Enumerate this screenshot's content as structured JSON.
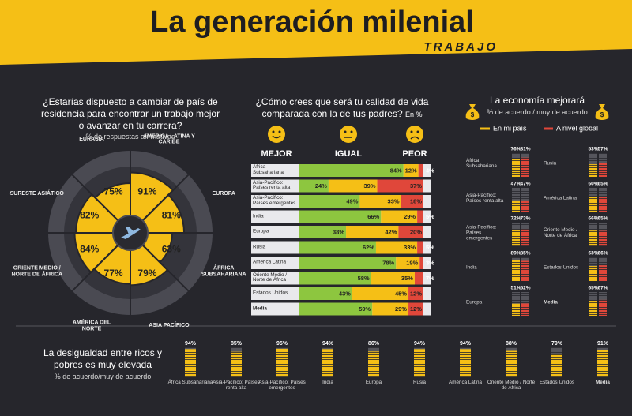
{
  "header": {
    "title": "La generación milenial",
    "subtitle": "TRABAJO"
  },
  "chart_data": [
    {
      "type": "radial",
      "title": "¿Estarías dispuesto a cambiar de país de residencia para encontrar un trabajo mejor o avanzar en tu carrera?",
      "subtitle": "% de respuestas afirmativas",
      "categories": [
        "EURASIA",
        "AMÉRICA LATINA Y CARIBE",
        "EUROPA",
        "ÁFRICA SUBSAHARIANA",
        "ASIA PACÍFICO",
        "AMÉRICA DEL NORTE",
        "ORIENTE MEDIO / NORTE DE ÁFRICA",
        "SURESTE ASIÁTICO"
      ],
      "values": [
        75,
        91,
        81,
        63,
        79,
        77,
        84,
        82
      ],
      "value_labels": [
        "75%",
        "91%",
        "81%",
        "63%",
        "79%",
        "77%",
        "84%",
        "82%"
      ],
      "color": "#f5bf16",
      "ylim": [
        0,
        100
      ]
    },
    {
      "type": "stacked-bar",
      "title": "¿Cómo crees que será tu calidad de vida comparada con la de tus padres?",
      "unit": "En %",
      "categories": [
        "África Subsahariana",
        "Asia-Pacífico: Países renta alta",
        "Asia-Pacífico: Países emergentes",
        "India",
        "Europa",
        "Rusia",
        "América Latina",
        "Oriente Medio / Norte de África",
        "Estados Unidos",
        "Media"
      ],
      "series": [
        {
          "name": "MEJOR",
          "color": "#8dc63f",
          "values": [
            84,
            24,
            49,
            66,
            38,
            62,
            78,
            58,
            43,
            59
          ],
          "value_labels": [
            "84%",
            "24%",
            "49%",
            "66%",
            "38%",
            "62%",
            "78%",
            "58%",
            "43%",
            "59%"
          ]
        },
        {
          "name": "IGUAL",
          "color": "#f5bf16",
          "values": [
            12,
            39,
            33,
            29,
            42,
            33,
            19,
            35,
            45,
            29
          ],
          "value_labels": [
            "12%",
            "39%",
            "33%",
            "29%",
            "42%",
            "33%",
            "19%",
            "35%",
            "45%",
            "29%"
          ]
        },
        {
          "name": "PEOR",
          "color": "#e0473a",
          "values": [
            4,
            37,
            18,
            5,
            20,
            5,
            3,
            7,
            12,
            12
          ],
          "value_labels": [
            "4%",
            "37%",
            "18%",
            "5%",
            "20%",
            "5%",
            "3%",
            "7%",
            "12%",
            "12%"
          ]
        }
      ],
      "xlim": [
        0,
        100
      ]
    },
    {
      "type": "grouped-bar",
      "title": "La economía mejorará",
      "subtitle": "% de acuerdo / muy de acuerdo",
      "categories": [
        "África Subsahariana",
        "Asia-Pacífico: Países renta alta",
        "Asia-Pacífico: Países emergentes",
        "India",
        "Europa",
        "Rusia",
        "América Latina",
        "Oriente Medio / Norte de África",
        "Estados Unidos",
        "Media"
      ],
      "series": [
        {
          "name": "En mi país",
          "color": "#f5bf16",
          "values": [
            76,
            47,
            72,
            89,
            51,
            53,
            60,
            66,
            63,
            65
          ],
          "value_labels": [
            "76%",
            "47%",
            "72%",
            "89%",
            "51%",
            "53%",
            "60%",
            "66%",
            "63%",
            "65%"
          ]
        },
        {
          "name": "A nivel global",
          "color": "#e0473a",
          "values": [
            81,
            47,
            73,
            85,
            52,
            57,
            65,
            65,
            66,
            67
          ],
          "value_labels": [
            "81%",
            "47%",
            "73%",
            "85%",
            "52%",
            "57%",
            "65%",
            "65%",
            "66%",
            "67%"
          ]
        }
      ],
      "ylim": [
        0,
        100
      ]
    },
    {
      "type": "bar",
      "title": "La desigualdad entre ricos y pobres es muy elevada",
      "subtitle": "% de acuerdo/muy de acuerdo",
      "categories": [
        "África Subsahariana",
        "Asia-Pacífico: Países renta alta",
        "Asia-Pacífico: Países emergentes",
        "India",
        "Europa",
        "Rusia",
        "América Latina",
        "Oriente Medio / Norte de África",
        "Estados Unidos",
        "Media"
      ],
      "values": [
        94,
        85,
        95,
        94,
        86,
        94,
        94,
        88,
        79,
        91
      ],
      "value_labels": [
        "94%",
        "85%",
        "95%",
        "94%",
        "86%",
        "94%",
        "94%",
        "88%",
        "79%",
        "91%"
      ],
      "color": "#f5bf16",
      "ylim": [
        0,
        100
      ]
    }
  ]
}
